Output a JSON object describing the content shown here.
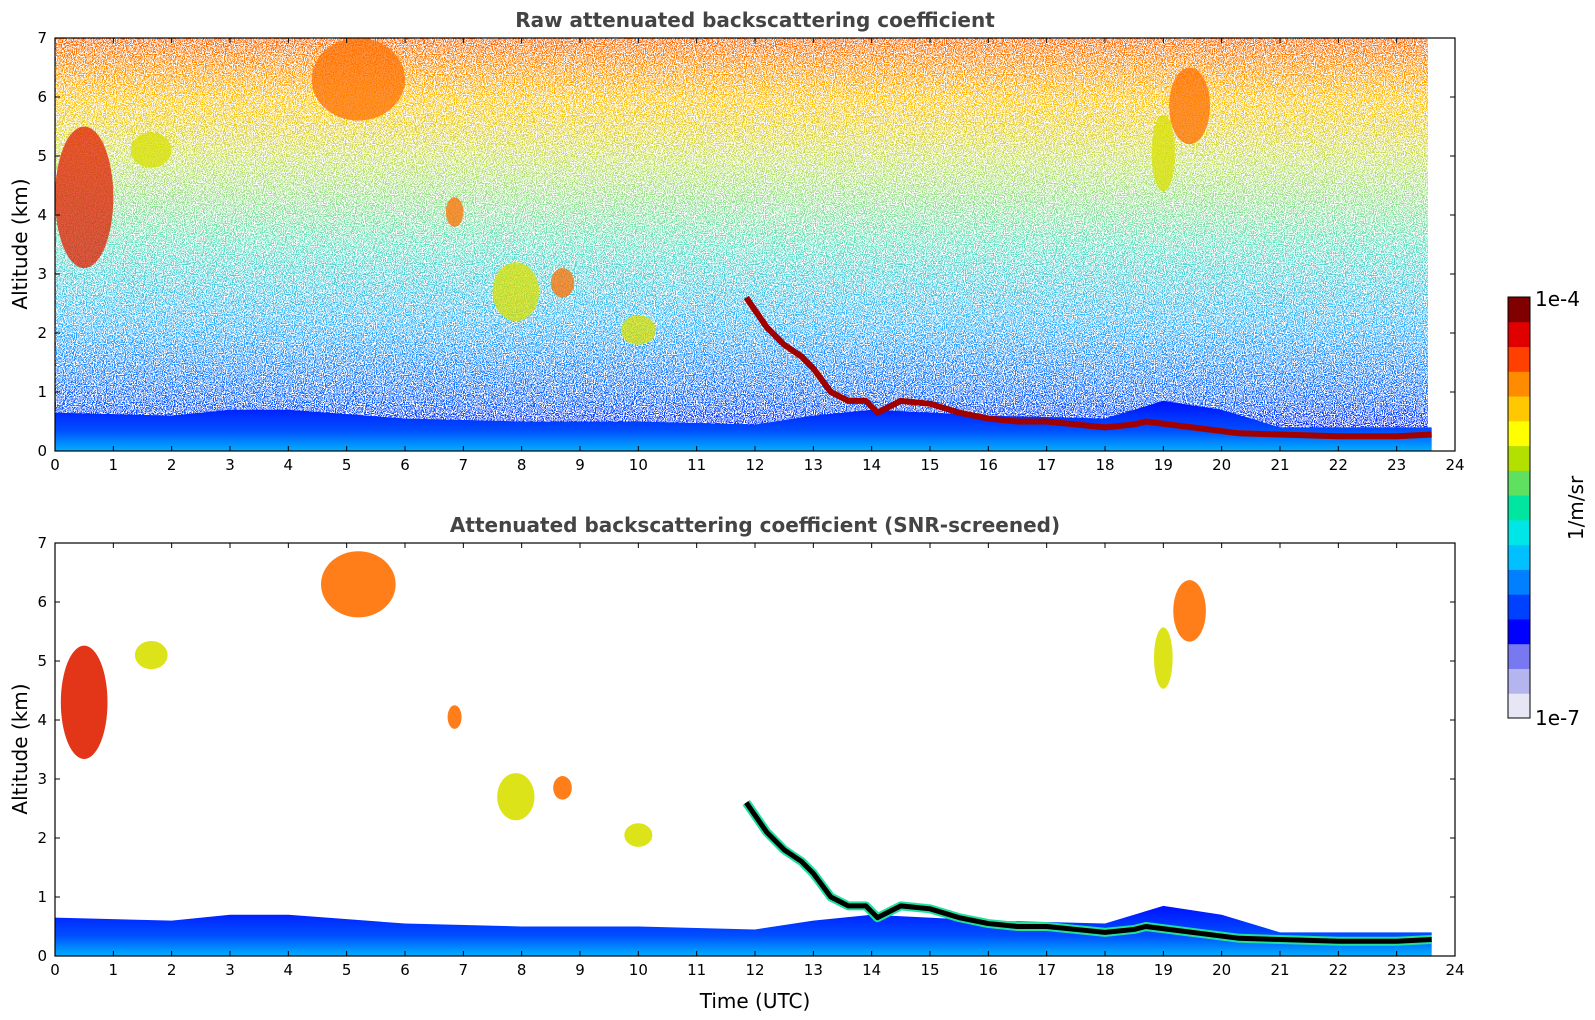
{
  "chart_data": [
    {
      "type": "heatmap",
      "title": "Raw attenuated backscattering coefficient",
      "xlabel": "",
      "ylabel": "Altitude (km)",
      "xlim": [
        0,
        24
      ],
      "ylim": [
        0,
        7
      ],
      "x_ticks": [
        "0",
        "1",
        "2",
        "3",
        "4",
        "5",
        "6",
        "7",
        "8",
        "9",
        "10",
        "11",
        "12",
        "13",
        "14",
        "15",
        "16",
        "17",
        "18",
        "19",
        "20",
        "21",
        "22",
        "23",
        "24"
      ],
      "y_ticks": [
        "0",
        "1",
        "2",
        "3",
        "4",
        "5",
        "6",
        "7"
      ],
      "data_end_time": 23.6,
      "boundary_layer_top_km": [
        [
          0,
          0.65
        ],
        [
          2,
          0.6
        ],
        [
          3,
          0.7
        ],
        [
          4,
          0.7
        ],
        [
          6,
          0.55
        ],
        [
          8,
          0.5
        ],
        [
          10,
          0.5
        ],
        [
          12,
          0.45
        ],
        [
          13,
          0.6
        ],
        [
          14,
          0.7
        ],
        [
          16,
          0.6
        ],
        [
          18,
          0.55
        ],
        [
          19,
          0.85
        ],
        [
          20,
          0.7
        ],
        [
          21,
          0.4
        ],
        [
          23.6,
          0.4
        ]
      ],
      "cloud_line_km": [
        [
          11.85,
          2.6
        ],
        [
          12.2,
          2.1
        ],
        [
          12.5,
          1.8
        ],
        [
          12.8,
          1.6
        ],
        [
          13.0,
          1.4
        ],
        [
          13.3,
          1.0
        ],
        [
          13.6,
          0.85
        ],
        [
          13.9,
          0.85
        ],
        [
          14.1,
          0.65
        ],
        [
          14.5,
          0.85
        ],
        [
          15.0,
          0.8
        ],
        [
          15.5,
          0.65
        ],
        [
          16.0,
          0.55
        ],
        [
          16.5,
          0.5
        ],
        [
          17.0,
          0.5
        ],
        [
          17.5,
          0.45
        ],
        [
          18.0,
          0.4
        ],
        [
          18.5,
          0.45
        ],
        [
          18.7,
          0.5
        ],
        [
          20.3,
          0.3
        ],
        [
          21.0,
          0.28
        ],
        [
          22.0,
          0.25
        ],
        [
          23.0,
          0.25
        ],
        [
          23.6,
          0.28
        ]
      ],
      "cirrus_patches": [
        {
          "t0": 0.0,
          "t1": 1.0,
          "z0": 3.1,
          "z1": 5.5,
          "level": "red"
        },
        {
          "t0": 1.3,
          "t1": 2.0,
          "z0": 4.8,
          "z1": 5.4,
          "level": "yellow"
        },
        {
          "t0": 4.4,
          "t1": 6.0,
          "z0": 5.6,
          "z1": 7.0,
          "level": "orange"
        },
        {
          "t0": 6.7,
          "t1": 7.0,
          "z0": 3.8,
          "z1": 4.3,
          "level": "orange"
        },
        {
          "t0": 7.5,
          "t1": 8.3,
          "z0": 2.2,
          "z1": 3.2,
          "level": "yellow"
        },
        {
          "t0": 8.5,
          "t1": 8.9,
          "z0": 2.6,
          "z1": 3.1,
          "level": "orange"
        },
        {
          "t0": 9.7,
          "t1": 10.3,
          "z0": 1.8,
          "z1": 2.3,
          "level": "yellow"
        },
        {
          "t0": 18.8,
          "t1": 19.2,
          "z0": 4.4,
          "z1": 5.7,
          "level": "yellow"
        },
        {
          "t0": 19.1,
          "t1": 19.8,
          "z0": 5.2,
          "z1": 6.5,
          "level": "orange"
        }
      ]
    },
    {
      "type": "heatmap",
      "title": "Attenuated backscattering coefficient (SNR-screened)",
      "xlabel": "Time (UTC)",
      "ylabel": "Altitude (km)",
      "xlim": [
        0,
        24
      ],
      "ylim": [
        0,
        7
      ],
      "x_ticks": [
        "0",
        "1",
        "2",
        "3",
        "4",
        "5",
        "6",
        "7",
        "8",
        "9",
        "10",
        "11",
        "12",
        "13",
        "14",
        "15",
        "16",
        "17",
        "18",
        "19",
        "20",
        "21",
        "22",
        "23",
        "24"
      ],
      "y_ticks": [
        "0",
        "1",
        "2",
        "3",
        "4",
        "5",
        "6",
        "7"
      ],
      "data_end_time": 23.6
    }
  ],
  "colorbar": {
    "label": "1/m/sr",
    "max_label": "1e-4",
    "min_label": "1e-7",
    "colormap": [
      "#e6e6f5",
      "#b4b4ee",
      "#7878f0",
      "#0000ff",
      "#0040ff",
      "#0080ff",
      "#00c0ff",
      "#00e6e6",
      "#00e6a0",
      "#60e060",
      "#b4e000",
      "#ffff00",
      "#ffc800",
      "#ff8c00",
      "#ff4000",
      "#e00000",
      "#800000"
    ]
  },
  "colors": {
    "cloud_black": "#000000",
    "axes": "#000000"
  }
}
